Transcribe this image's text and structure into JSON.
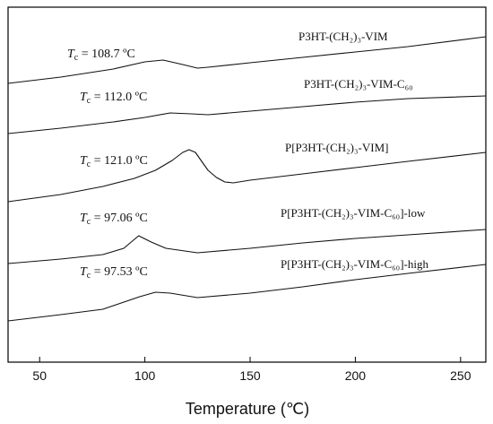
{
  "chart_data": {
    "type": "line",
    "xlabel": "Temperature (℃)",
    "ylabel": "",
    "xlim": [
      35,
      262
    ],
    "xticks": [
      50,
      100,
      150,
      200,
      250
    ],
    "grid": false,
    "series": [
      {
        "name": "P3HT-(CH₂)₃-VIM",
        "tc_label": "108.7 ºC",
        "points": [
          [
            35,
            -93
          ],
          [
            60,
            -86
          ],
          [
            85,
            -77
          ],
          [
            100,
            -69
          ],
          [
            108.7,
            -67
          ],
          [
            118,
            -72
          ],
          [
            125,
            -76
          ],
          [
            130,
            -75
          ],
          [
            150,
            -70
          ],
          [
            175,
            -64
          ],
          [
            200,
            -58
          ],
          [
            225,
            -52
          ],
          [
            262,
            -41
          ]
        ]
      },
      {
        "name": "P3HT-(CH₂)₃-VIM-C₆₀",
        "tc_label": "112.0 ºC",
        "points": [
          [
            35,
            -149
          ],
          [
            60,
            -143
          ],
          [
            85,
            -136
          ],
          [
            100,
            -131
          ],
          [
            112,
            -126
          ],
          [
            122,
            -127
          ],
          [
            130,
            -128
          ],
          [
            150,
            -124
          ],
          [
            175,
            -119
          ],
          [
            200,
            -114
          ],
          [
            225,
            -110
          ],
          [
            262,
            -107
          ]
        ]
      },
      {
        "name": "P[P3HT-(CH₂)₃-VIM]",
        "tc_label": "121.0 ºC",
        "points": [
          [
            35,
            -225
          ],
          [
            60,
            -217
          ],
          [
            80,
            -208
          ],
          [
            95,
            -199
          ],
          [
            105,
            -190
          ],
          [
            113,
            -179
          ],
          [
            118,
            -170
          ],
          [
            121,
            -167
          ],
          [
            124,
            -170
          ],
          [
            127,
            -180
          ],
          [
            130,
            -190
          ],
          [
            134,
            -198
          ],
          [
            138,
            -203
          ],
          [
            142,
            -204
          ],
          [
            150,
            -201
          ],
          [
            175,
            -194
          ],
          [
            200,
            -187
          ],
          [
            225,
            -180
          ],
          [
            262,
            -170
          ]
        ]
      },
      {
        "name": "P[P3HT-(CH₂)₃-VIM-C₆₀]-low",
        "tc_label": "97.06 ºC",
        "points": [
          [
            35,
            -294
          ],
          [
            60,
            -289
          ],
          [
            80,
            -284
          ],
          [
            90,
            -277
          ],
          [
            97.06,
            -263
          ],
          [
            103,
            -270
          ],
          [
            110,
            -277
          ],
          [
            125,
            -282
          ],
          [
            150,
            -277
          ],
          [
            175,
            -271
          ],
          [
            200,
            -266
          ],
          [
            225,
            -262
          ],
          [
            262,
            -256
          ]
        ]
      },
      {
        "name": "P[P3HT-(CH₂)₃-VIM-C₆₀]-high",
        "tc_label": "97.53 ºC",
        "points": [
          [
            35,
            -358
          ],
          [
            60,
            -351
          ],
          [
            80,
            -345
          ],
          [
            97.53,
            -331
          ],
          [
            105,
            -326
          ],
          [
            112,
            -327
          ],
          [
            125,
            -332
          ],
          [
            150,
            -327
          ],
          [
            175,
            -320
          ],
          [
            200,
            -312
          ],
          [
            225,
            -305
          ],
          [
            262,
            -295
          ]
        ]
      }
    ],
    "tc_prefix": "T",
    "tc_subscript": "c",
    "tc_equals": " = "
  }
}
